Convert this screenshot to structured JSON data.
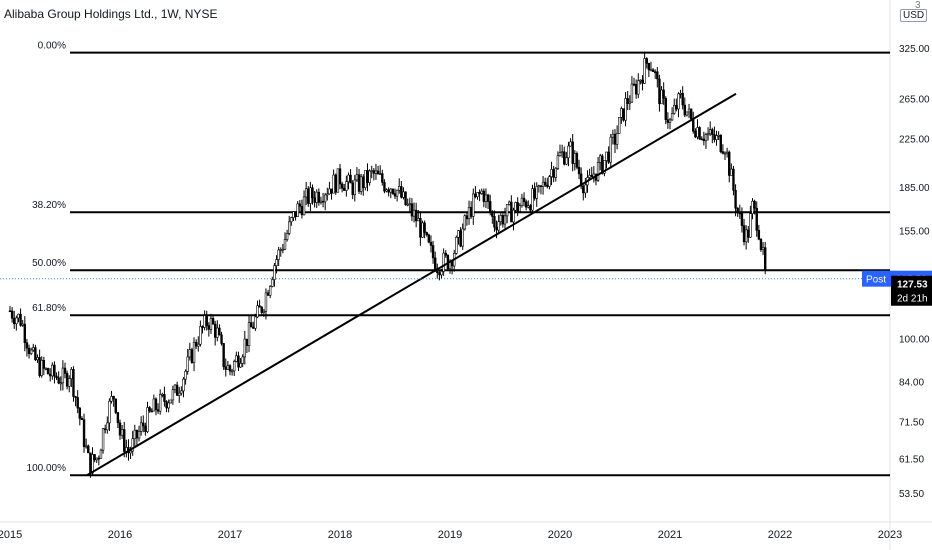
{
  "header": {
    "title": "Alibaba Group Holdings Ltd., 1W, NYSE",
    "currency": "USD",
    "corner_glyph": "3"
  },
  "colors": {
    "candle": "#000000",
    "post_badge": "#2962ff",
    "price_badge": "#000000",
    "current_line": "#2196f3"
  },
  "badges": {
    "post_label": "Post",
    "post_price": "127.56",
    "last_price": "127.53",
    "countdown": "2d 21h"
  },
  "chart_data": {
    "type": "candlestick",
    "price_scale": "log",
    "ylim": [
      49,
      360
    ],
    "y_ticks": [
      "325.00",
      "265.00",
      "225.00",
      "185.00",
      "155.00",
      "100.00",
      "84.00",
      "71.50",
      "61.50",
      "53.50"
    ],
    "y_tick_values": [
      325,
      265,
      225,
      185,
      155,
      100,
      84,
      71.5,
      61.5,
      53.5
    ],
    "x_ticks": [
      "2015",
      "2016",
      "2017",
      "2018",
      "2019",
      "2020",
      "2021",
      "2022",
      "2023"
    ],
    "x_tick_values": [
      2015.0,
      2016.0,
      2017.0,
      2018.0,
      2019.0,
      2020.0,
      2021.0,
      2022.0,
      2023.0
    ],
    "xlim": [
      2015.0,
      2023.2
    ],
    "fib_levels": [
      {
        "label": "0.00%",
        "price": 319
      },
      {
        "label": "38.20%",
        "price": 167
      },
      {
        "label": "50.00%",
        "price": 132
      },
      {
        "label": "61.80%",
        "price": 110
      },
      {
        "label": "100.00%",
        "price": 57.5
      }
    ],
    "trendline": {
      "start": {
        "x": 2015.7,
        "price": 57.5
      },
      "end": {
        "x": 2021.6,
        "price": 270
      }
    },
    "current_price": 127.53,
    "anchors": [
      [
        2015.0,
        112
      ],
      [
        2015.1,
        108
      ],
      [
        2015.2,
        93
      ],
      [
        2015.3,
        88
      ],
      [
        2015.4,
        86
      ],
      [
        2015.5,
        85
      ],
      [
        2015.55,
        88
      ],
      [
        2015.62,
        75
      ],
      [
        2015.72,
        60
      ],
      [
        2015.8,
        62
      ],
      [
        2015.88,
        74
      ],
      [
        2015.95,
        80
      ],
      [
        2016.0,
        68
      ],
      [
        2016.08,
        63
      ],
      [
        2016.2,
        70
      ],
      [
        2016.3,
        75
      ],
      [
        2016.4,
        78
      ],
      [
        2016.5,
        80
      ],
      [
        2016.6,
        88
      ],
      [
        2016.7,
        100
      ],
      [
        2016.8,
        108
      ],
      [
        2016.88,
        103
      ],
      [
        2016.95,
        90
      ],
      [
        2017.0,
        88
      ],
      [
        2017.1,
        95
      ],
      [
        2017.2,
        105
      ],
      [
        2017.3,
        115
      ],
      [
        2017.4,
        135
      ],
      [
        2017.5,
        150
      ],
      [
        2017.6,
        168
      ],
      [
        2017.7,
        177
      ],
      [
        2017.8,
        180
      ],
      [
        2017.9,
        185
      ],
      [
        2018.0,
        192
      ],
      [
        2018.1,
        185
      ],
      [
        2018.2,
        188
      ],
      [
        2018.3,
        195
      ],
      [
        2018.4,
        188
      ],
      [
        2018.5,
        185
      ],
      [
        2018.6,
        172
      ],
      [
        2018.7,
        162
      ],
      [
        2018.8,
        145
      ],
      [
        2018.88,
        135
      ],
      [
        2019.0,
        138
      ],
      [
        2019.1,
        152
      ],
      [
        2019.2,
        172
      ],
      [
        2019.3,
        182
      ],
      [
        2019.4,
        160
      ],
      [
        2019.5,
        165
      ],
      [
        2019.6,
        170
      ],
      [
        2019.7,
        175
      ],
      [
        2019.8,
        178
      ],
      [
        2019.9,
        195
      ],
      [
        2020.0,
        210
      ],
      [
        2020.1,
        215
      ],
      [
        2020.2,
        190
      ],
      [
        2020.25,
        185
      ],
      [
        2020.3,
        195
      ],
      [
        2020.4,
        205
      ],
      [
        2020.5,
        225
      ],
      [
        2020.6,
        260
      ],
      [
        2020.7,
        280
      ],
      [
        2020.8,
        310
      ],
      [
        2020.85,
        300
      ],
      [
        2020.9,
        270
      ],
      [
        2021.0,
        240
      ],
      [
        2021.05,
        255
      ],
      [
        2021.1,
        265
      ],
      [
        2021.2,
        240
      ],
      [
        2021.3,
        230
      ],
      [
        2021.4,
        225
      ],
      [
        2021.5,
        220
      ],
      [
        2021.55,
        195
      ],
      [
        2021.62,
        165
      ],
      [
        2021.7,
        150
      ],
      [
        2021.75,
        170
      ],
      [
        2021.8,
        160
      ],
      [
        2021.85,
        137
      ],
      [
        2021.87,
        127.5
      ]
    ]
  }
}
